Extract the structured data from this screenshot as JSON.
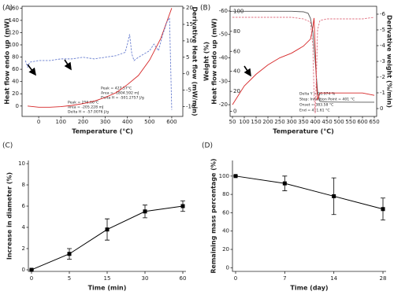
{
  "chart_data": [
    {
      "type": "line",
      "panel_label": "(A)",
      "xlabel": "Temperature (°C)",
      "ylabel": "Heat flow endo up (mW)",
      "y2label": "Derivative Heat flow (mW/min)",
      "xlim": [
        -75,
        650
      ],
      "xticks": [
        0,
        100,
        200,
        300,
        400,
        500,
        600
      ],
      "ylim": [
        -17,
        163
      ],
      "yticks": [
        0,
        20,
        40,
        60,
        80,
        100,
        120,
        140,
        160
      ],
      "y2lim": [
        -13,
        20.5
      ],
      "y2ticks": [
        -10,
        -5,
        0,
        5,
        10,
        15,
        20
      ],
      "annotations": [
        "Peak = 427.57°C",
        "Area = -1804.592 mJ",
        "Delta H = -501.2757 J/g",
        "Peak = 256.66°C",
        "Area = -205.228 mJ",
        "Delta H = -57.0076 J/g"
      ],
      "series": [
        {
          "color": "#d62728",
          "x": [
            -50,
            0,
            50,
            100,
            150,
            200,
            250,
            300,
            350,
            400,
            450,
            500,
            550,
            580,
            600
          ],
          "values": [
            0,
            -2,
            -2,
            -1,
            1,
            4,
            8,
            14,
            22,
            35,
            50,
            75,
            110,
            140,
            160
          ]
        },
        {
          "color": "#6a7fd0",
          "dash": true,
          "axis": "y2",
          "x": [
            -60,
            -50,
            -40,
            0,
            50,
            100,
            150,
            200,
            250,
            300,
            350,
            390,
            400,
            410,
            420,
            430,
            450,
            500,
            520,
            540,
            560,
            580,
            590,
            600
          ],
          "values": [
            4,
            2,
            3.5,
            4,
            4,
            4.5,
            4.5,
            5,
            4.5,
            5,
            5.5,
            6.5,
            9,
            12,
            6,
            4,
            5,
            7,
            9,
            7,
            12,
            16,
            17,
            -11
          ]
        }
      ]
    },
    {
      "type": "line",
      "panel_label": "(B)",
      "xlabel": "Temperature (°C)",
      "ylabel": "Weight (%)",
      "y3label": "Heat flow endo up (mW)",
      "y2label": "Derivative weight (%/min)",
      "xlim": [
        40,
        660
      ],
      "xticks": [
        50,
        100,
        150,
        200,
        250,
        300,
        350,
        400,
        450,
        500,
        550,
        600,
        650
      ],
      "ylim": [
        -5,
        105
      ],
      "yticks": [
        0,
        20,
        40,
        60,
        80,
        100
      ],
      "y3lim": [
        -15,
        -62
      ],
      "y3ticks": [
        -60,
        -50,
        -40,
        -30,
        -20
      ],
      "y2lim": [
        0.5,
        -6.5
      ],
      "y2ticks": [
        -6,
        -5,
        -4,
        -3,
        -2,
        -1,
        0
      ],
      "annotations": [
        "Delta Y = 90.974 %",
        "Step: Inflection Point = 401 °C",
        "Onset = 383.58 °C",
        "End = 411.61 °C"
      ],
      "series": [
        {
          "color": "#555555",
          "x": [
            50,
            100,
            200,
            300,
            350,
            370,
            380,
            390,
            400,
            410,
            420,
            450,
            500,
            600,
            650
          ],
          "values": [
            100,
            100,
            100,
            100,
            99.5,
            98,
            93,
            80,
            50,
            20,
            10,
            9.5,
            9.3,
            9.2,
            9.2
          ]
        },
        {
          "color": "#d62728",
          "axis": "y3",
          "x": [
            50,
            100,
            150,
            200,
            250,
            300,
            350,
            380,
            390,
            395,
            400,
            405,
            410,
            420,
            450,
            500,
            600,
            650
          ],
          "values": [
            -20,
            -28,
            -33,
            -37,
            -40,
            -42,
            -45,
            -48,
            -53,
            -57,
            -45,
            -30,
            -22,
            -25,
            -25,
            -25,
            -25,
            -24
          ]
        },
        {
          "color": "#e07080",
          "dash": true,
          "axis": "y2",
          "x": [
            50,
            100,
            200,
            300,
            350,
            380,
            390,
            395,
            400,
            405,
            410,
            420,
            450,
            500,
            600,
            650
          ],
          "values": [
            -5.8,
            -5.8,
            -5.8,
            -5.8,
            -5.7,
            -5.5,
            -4,
            -1,
            0.3,
            -2,
            -5,
            -5.6,
            -5.7,
            -5.7,
            -5.7,
            -5.8
          ]
        }
      ]
    },
    {
      "type": "errorbar",
      "panel_label": "(C)",
      "xlabel": "Time (min)",
      "ylabel": "Increase in diameter (%)",
      "categories": [
        "0",
        "5",
        "15",
        "30",
        "60"
      ],
      "values": [
        0,
        1.5,
        3.8,
        5.5,
        6.0
      ],
      "errors": [
        0,
        0.5,
        1.0,
        0.6,
        0.5
      ],
      "ylim": [
        -0.15,
        10.3
      ],
      "yticks": [
        0,
        2,
        4,
        6,
        8,
        10
      ],
      "color": "#000000"
    },
    {
      "type": "errorbar",
      "panel_label": "(D)",
      "xlabel": "Time (day)",
      "ylabel": "Remaining mass percentage (%)",
      "categories": [
        "0",
        "7",
        "14",
        "28"
      ],
      "values": [
        100,
        92,
        78,
        64
      ],
      "errors": [
        0,
        8,
        20,
        12
      ],
      "ylim": [
        -4,
        117
      ],
      "yticks": [
        0,
        20,
        40,
        60,
        80,
        100
      ],
      "color": "#000000"
    }
  ]
}
